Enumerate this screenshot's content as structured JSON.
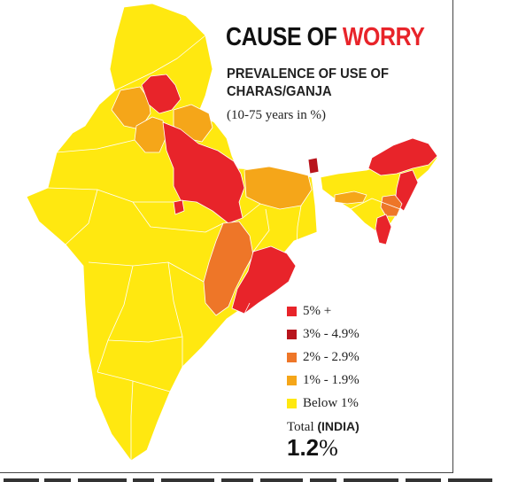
{
  "title": {
    "part1": "CAUSE OF ",
    "part2": "WORRY"
  },
  "subtitle": "PREVALENCE OF USE OF CHARAS/GANJA",
  "unit": "(10-75 years in %)",
  "colors": {
    "below_1": "#ffe810",
    "1_to_1_9": "#f5a619",
    "2_to_2_9": "#ee7628",
    "3_to_4_9": "#b8141c",
    "5_plus": "#e8242a",
    "border": "#ffffff",
    "background": "#ffffff"
  },
  "legend": [
    {
      "label": "5% +",
      "color": "#e8242a"
    },
    {
      "label": "3% - 4.9%",
      "color": "#b8141c"
    },
    {
      "label": "2% - 2.9%",
      "color": "#ee7628"
    },
    {
      "label": "1% - 1.9%",
      "color": "#f5a619"
    },
    {
      "label": "Below 1%",
      "color": "#ffe810"
    }
  ],
  "total": {
    "label_prefix": "Total ",
    "label_bold": "(INDIA)",
    "value": "1.2",
    "unit": "%"
  }
}
